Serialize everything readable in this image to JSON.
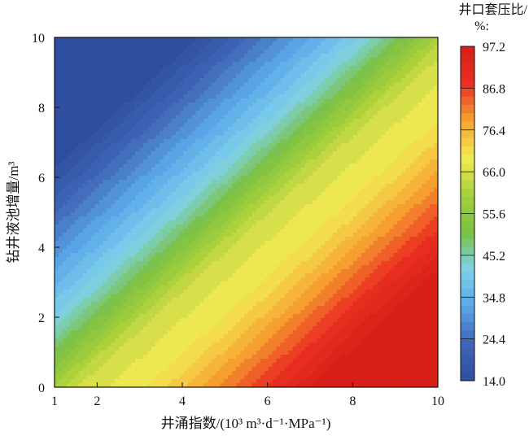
{
  "chart_data": {
    "type": "heatmap",
    "subtype": "filled-contour",
    "xlabel": "井涌指数/(10³ m³·d⁻¹·MPa⁻¹)",
    "ylabel": "钻井液池增量/m³",
    "xlim": [
      1,
      10
    ],
    "ylim": [
      0,
      10
    ],
    "x_ticks": [
      1,
      2,
      4,
      6,
      8,
      10
    ],
    "y_ticks": [
      0,
      2,
      4,
      6,
      8,
      10
    ],
    "colorbar": {
      "title_line1": "井口套压比/",
      "title_line2": "%:",
      "ticks": [
        97.2,
        86.8,
        76.4,
        66.0,
        55.6,
        45.2,
        34.8,
        24.4,
        14.0
      ],
      "tick_labels": [
        "97.2",
        "86.8",
        "76.4",
        "66.0",
        "55.6",
        "45.2",
        "34.8",
        "24.4",
        "14.0"
      ],
      "range": [
        14.0,
        97.2
      ],
      "colors": [
        "#2f4ea0",
        "#3f66b6",
        "#5aa6e8",
        "#7fd2ec",
        "#7ac142",
        "#a6cf3c",
        "#f4ea52",
        "#f6a332",
        "#ea3020",
        "#d81f18"
      ]
    },
    "grid": false,
    "legend": "colorbar-right"
  }
}
